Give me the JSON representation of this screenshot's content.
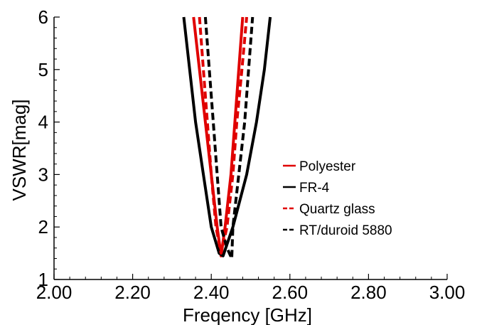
{
  "chart_data": {
    "type": "line",
    "xlabel": "Freqency [GHz]",
    "ylabel": "VSWR[mag]",
    "xlim": [
      2.0,
      3.0
    ],
    "ylim": [
      1,
      6
    ],
    "x_ticks": [
      "2.00",
      "2.20",
      "2.40",
      "2.60",
      "2.80",
      "3.00"
    ],
    "y_ticks": [
      "1",
      "2",
      "3",
      "4",
      "5",
      "6"
    ],
    "grid": false,
    "legend_position": "center-right",
    "series": [
      {
        "name": "Polyester",
        "color": "#e00000",
        "dash": "solid",
        "points": [
          [
            2.355,
            6.0
          ],
          [
            2.37,
            5.0
          ],
          [
            2.385,
            4.0
          ],
          [
            2.4,
            3.0
          ],
          [
            2.415,
            2.0
          ],
          [
            2.425,
            1.45
          ],
          [
            2.435,
            2.0
          ],
          [
            2.45,
            3.0
          ],
          [
            2.46,
            4.0
          ],
          [
            2.47,
            5.0
          ],
          [
            2.48,
            6.0
          ]
        ]
      },
      {
        "name": "FR-4",
        "color": "#000000",
        "dash": "solid",
        "points": [
          [
            2.33,
            6.0
          ],
          [
            2.345,
            5.0
          ],
          [
            2.36,
            4.0
          ],
          [
            2.38,
            3.0
          ],
          [
            2.4,
            2.0
          ],
          [
            2.42,
            1.5
          ],
          [
            2.43,
            1.45
          ],
          [
            2.455,
            2.0
          ],
          [
            2.49,
            3.0
          ],
          [
            2.515,
            4.0
          ],
          [
            2.535,
            5.0
          ],
          [
            2.55,
            6.0
          ]
        ]
      },
      {
        "name": "Quartz glass",
        "color": "#e00000",
        "dash": "dashed",
        "points": [
          [
            2.37,
            6.0
          ],
          [
            2.38,
            5.0
          ],
          [
            2.39,
            4.0
          ],
          [
            2.4,
            3.0
          ],
          [
            2.412,
            2.0
          ],
          [
            2.425,
            1.5
          ],
          [
            2.44,
            2.0
          ],
          [
            2.455,
            3.0
          ],
          [
            2.465,
            4.0
          ],
          [
            2.478,
            5.0
          ],
          [
            2.49,
            6.0
          ]
        ]
      },
      {
        "name": "RT/duroid 5880",
        "color": "#000000",
        "dash": "dashed",
        "points": [
          [
            2.385,
            6.0
          ],
          [
            2.395,
            5.0
          ],
          [
            2.405,
            4.0
          ],
          [
            2.415,
            3.0
          ],
          [
            2.425,
            2.0
          ],
          [
            2.44,
            1.6
          ],
          [
            2.452,
            1.4
          ],
          [
            2.455,
            2.0
          ],
          [
            2.47,
            3.0
          ],
          [
            2.485,
            4.0
          ],
          [
            2.495,
            5.0
          ],
          [
            2.505,
            6.0
          ]
        ]
      }
    ]
  }
}
